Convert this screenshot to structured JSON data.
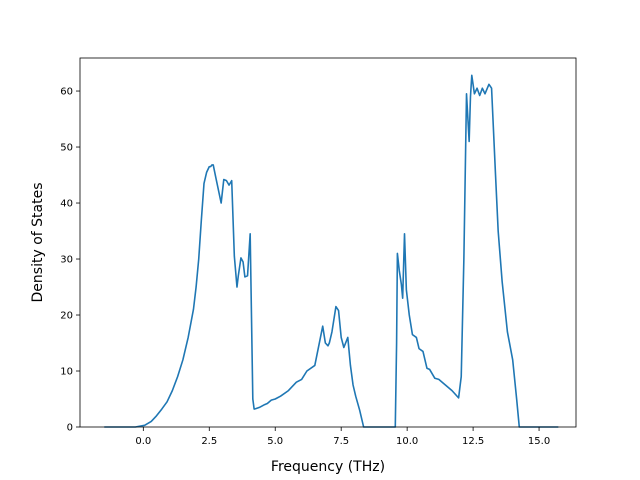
{
  "chart_data": {
    "type": "line",
    "title": "",
    "xlabel": "Frequency (THz)",
    "ylabel": "Density of States",
    "xlim": [
      -2.4,
      16.4
    ],
    "ylim": [
      0,
      65.9
    ],
    "grid": false,
    "legend": "none",
    "line_color": "#1f77b4",
    "xticks": [
      0.0,
      2.5,
      5.0,
      7.5,
      10.0,
      12.5,
      15.0
    ],
    "xtick_labels": [
      "0.0",
      "2.5",
      "5.0",
      "7.5",
      "10.0",
      "12.5",
      "15.0"
    ],
    "yticks": [
      0,
      10,
      20,
      30,
      40,
      50,
      60
    ],
    "ytick_labels": [
      "0",
      "10",
      "20",
      "30",
      "40",
      "50",
      "60"
    ],
    "series": [
      {
        "x": [
          -1.45,
          -0.3,
          0.05,
          0.3,
          0.5,
          0.7,
          0.9,
          1.1,
          1.3,
          1.5,
          1.7,
          1.9,
          2.0,
          2.1,
          2.2,
          2.3,
          2.4,
          2.5,
          2.55,
          2.6,
          2.65,
          2.75,
          2.95,
          3.05,
          3.15,
          3.25,
          3.35,
          3.45,
          3.55,
          3.6,
          3.7,
          3.78,
          3.85,
          3.95,
          4.05,
          4.15,
          4.2,
          4.28,
          4.4,
          4.6,
          4.7,
          4.85,
          5.0,
          5.2,
          5.5,
          5.8,
          6.0,
          6.2,
          6.5,
          6.8,
          6.9,
          7.0,
          7.05,
          7.15,
          7.3,
          7.4,
          7.5,
          7.6,
          7.75,
          7.85,
          7.95,
          8.05,
          8.2,
          8.35,
          9.55,
          9.6,
          9.63,
          9.7,
          9.78,
          9.83,
          9.9,
          9.97,
          10.08,
          10.2,
          10.35,
          10.45,
          10.6,
          10.75,
          10.85,
          11.05,
          11.2,
          11.45,
          11.7,
          11.95,
          12.05,
          12.15,
          12.25,
          12.35,
          12.4,
          12.45,
          12.55,
          12.65,
          12.75,
          12.85,
          12.95,
          13.1,
          13.2,
          13.35,
          13.45,
          13.6,
          13.8,
          14.0,
          14.15,
          14.25,
          15.7
        ],
        "y": [
          0,
          0,
          0.3,
          1.0,
          2.0,
          3.2,
          4.5,
          6.5,
          9.0,
          12.0,
          16.0,
          21.0,
          25.0,
          30.0,
          37.0,
          43.5,
          45.5,
          46.5,
          46.5,
          46.8,
          46.8,
          44.5,
          40.0,
          44.2,
          44.0,
          43.2,
          44.0,
          30.5,
          25.0,
          27.0,
          30.2,
          29.5,
          26.8,
          27.0,
          34.5,
          5.0,
          3.2,
          3.3,
          3.5,
          4.0,
          4.2,
          4.8,
          5.0,
          5.5,
          6.5,
          8.0,
          8.5,
          10.0,
          11.0,
          18.0,
          15.0,
          14.5,
          15.0,
          17.0,
          21.5,
          20.8,
          16.0,
          14.2,
          16.0,
          11.0,
          7.5,
          5.5,
          3.0,
          0,
          0,
          15.0,
          31.0,
          28.0,
          25.5,
          23.0,
          34.5,
          24.5,
          20.0,
          16.5,
          16.0,
          14.0,
          13.5,
          10.5,
          10.3,
          8.7,
          8.5,
          7.5,
          6.5,
          5.2,
          9.0,
          30.0,
          59.5,
          51.0,
          59.0,
          62.8,
          59.5,
          60.5,
          59.2,
          60.5,
          59.5,
          61.2,
          60.5,
          45.0,
          35.0,
          26.0,
          17.0,
          12.0,
          5.0,
          0,
          0
        ]
      }
    ]
  }
}
